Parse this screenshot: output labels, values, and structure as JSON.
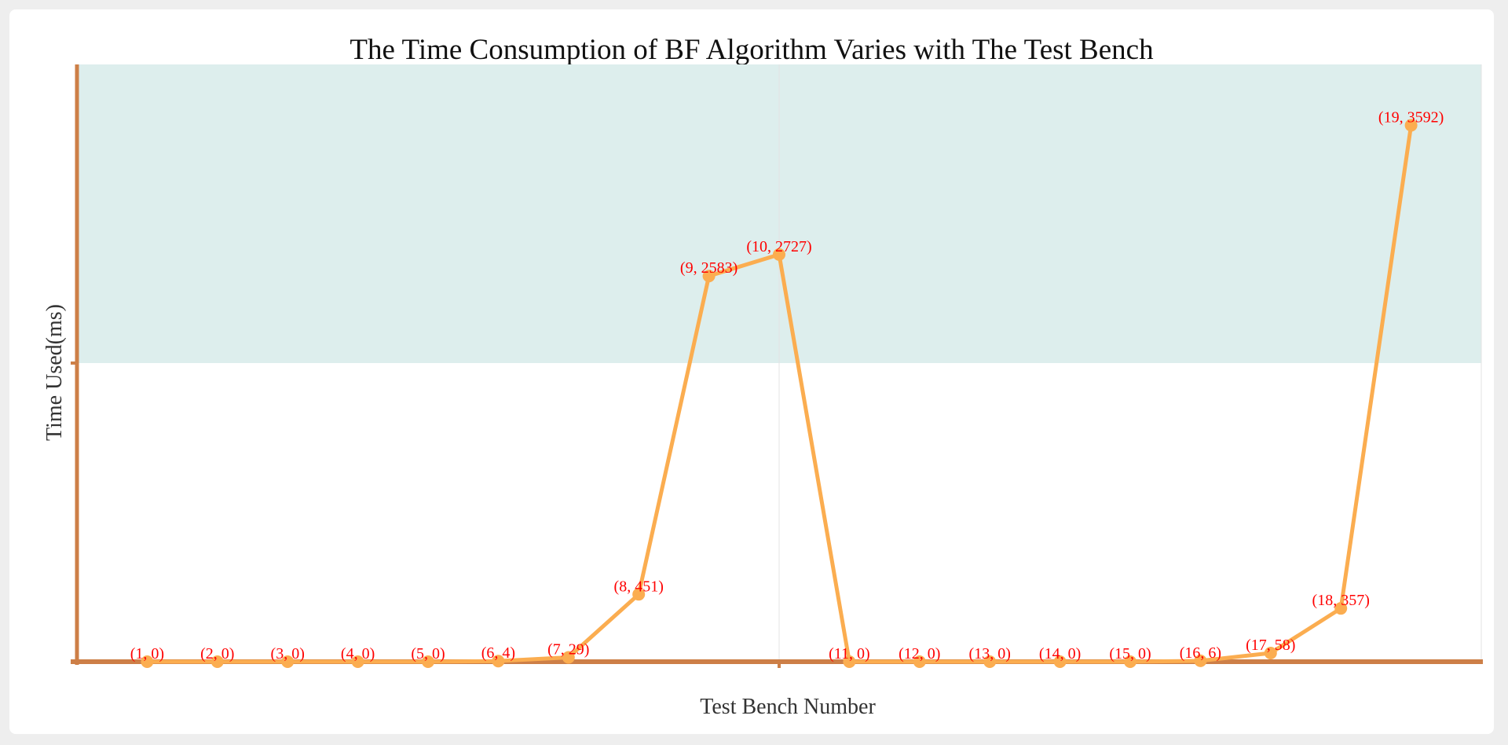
{
  "chart_data": {
    "type": "line",
    "title": "The Time Consumption of BF Algorithm Varies with The Test Bench",
    "xlabel": "Test Bench Number",
    "ylabel": "Time Used(ms)",
    "x": [
      1,
      2,
      3,
      4,
      5,
      6,
      7,
      8,
      9,
      10,
      11,
      12,
      13,
      14,
      15,
      16,
      17,
      18,
      19
    ],
    "xlim": [
      0,
      20
    ],
    "ylim": [
      0,
      4000
    ],
    "series": [
      {
        "values": [
          0,
          0,
          0,
          0,
          0,
          4,
          29,
          451,
          2583,
          2727,
          0,
          0,
          0,
          0,
          0,
          6,
          58,
          357,
          3592
        ]
      }
    ],
    "point_labels": [
      "(1, 0)",
      "(2, 0)",
      "(3, 0)",
      "(4, 0)",
      "(5, 0)",
      "(6, 4)",
      "(7, 29)",
      "(8, 451)",
      "(9, 2583)",
      "(10, 2727)",
      "(11, 0)",
      "(12, 0)",
      "(13, 0)",
      "(14, 0)",
      "(15, 0)",
      "(16, 6)",
      "(17, 58)",
      "(18, 357)",
      "(19, 3592)"
    ],
    "marked_band": [
      2000,
      4000
    ],
    "grid": false,
    "legend": "none",
    "colors": {
      "line": "#fbad50",
      "label": "#ff0000",
      "axis": "#cd7f47",
      "band": "#ddeeed",
      "divider": "#e3e3e3"
    }
  }
}
